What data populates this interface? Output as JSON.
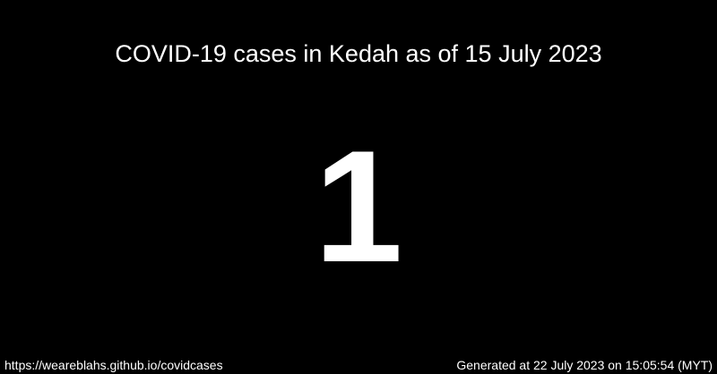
{
  "card": {
    "title": "COVID-19 cases in Kedah as of 15 July 2023",
    "count": "1",
    "source_url": "https://weareblahs.github.io/covidcases",
    "generated": "Generated at 22 July 2023 on 15:05:54 (MYT)"
  },
  "colors": {
    "background": "#000000",
    "text": "#ffffff"
  }
}
